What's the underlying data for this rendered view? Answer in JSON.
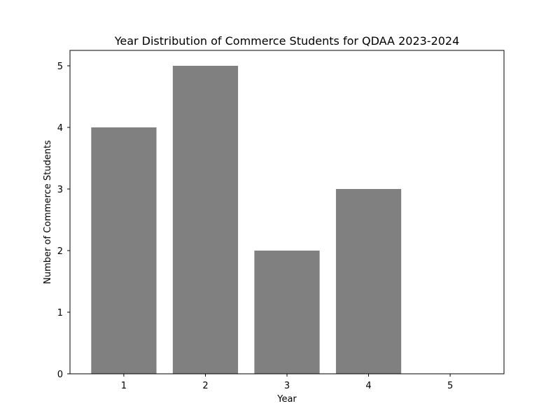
{
  "chart_data": {
    "type": "bar",
    "title": "Year Distribution of Commerce Students for QDAA 2023-2024",
    "xlabel": "Year",
    "ylabel": "Number of Commerce Students",
    "categories": [
      "1",
      "2",
      "3",
      "4",
      "5"
    ],
    "values": [
      4,
      5,
      2,
      3,
      0
    ],
    "ylim": [
      0,
      5.25
    ],
    "yticks": [
      "0",
      "1",
      "2",
      "3",
      "4",
      "5"
    ],
    "bar_color": "#808080",
    "grid": false,
    "legend": "none"
  }
}
